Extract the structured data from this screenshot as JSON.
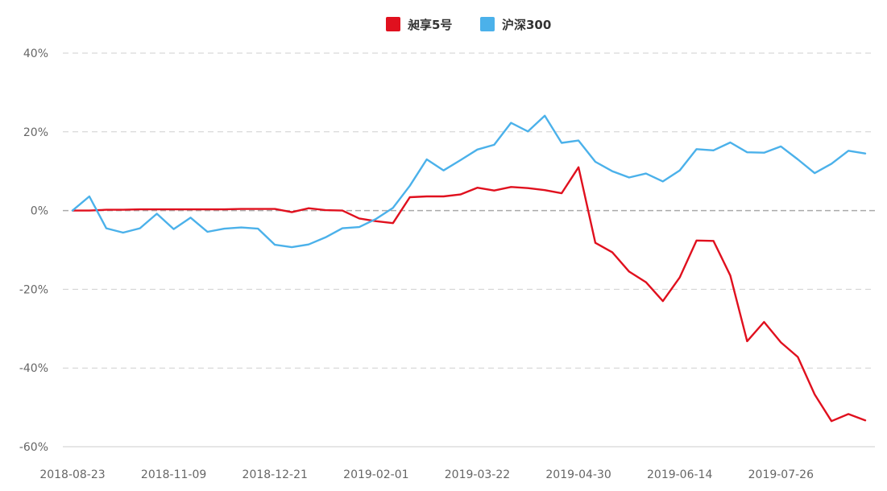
{
  "chart_data": {
    "type": "line",
    "title": "",
    "xlabel": "",
    "ylabel": "",
    "ylim": [
      -60,
      40
    ],
    "y_ticks": [
      "40%",
      "20%",
      "0%",
      "-20%",
      "-40%",
      "-60%"
    ],
    "y_tick_values": [
      40,
      20,
      0,
      -20,
      -40,
      -60
    ],
    "grid": true,
    "legend_position": "top-center",
    "x_tick_labels": [
      "2018-08-23",
      "2018-11-09",
      "2018-12-21",
      "2019-02-01",
      "2019-03-22",
      "2019-04-30",
      "2019-06-14",
      "2019-07-26"
    ],
    "x_tick_indices": [
      0,
      6,
      12,
      18,
      24,
      30,
      36,
      42
    ],
    "series": [
      {
        "name": "昶享5号",
        "color": "#e0101e",
        "values": [
          0,
          0,
          0.2,
          0.2,
          0.3,
          0.3,
          0.3,
          0.3,
          0.3,
          0.3,
          0.4,
          0.4,
          0.4,
          -0.4,
          0.6,
          0.1,
          0,
          -2,
          -2.7,
          -3.2,
          3.4,
          3.6,
          3.6,
          4.1,
          5.8,
          5.1,
          6,
          5.7,
          5.2,
          4.4,
          11,
          -8.2,
          -10.6,
          -15.5,
          -18.2,
          -23,
          -17,
          -7.6,
          -7.7,
          -16.5,
          -33.2,
          -28.3,
          -33.5,
          -37.2,
          -46.7,
          -53.5,
          -51.7,
          -53.3
        ]
      },
      {
        "name": "沪深300",
        "color": "#4bb1ea",
        "values": [
          0,
          3.6,
          -4.5,
          -5.6,
          -4.5,
          -0.8,
          -4.7,
          -1.8,
          -5.4,
          -4.6,
          -4.3,
          -4.6,
          -8.7,
          -9.3,
          -8.6,
          -6.8,
          -4.5,
          -4.2,
          -2.1,
          0.7,
          6.3,
          13,
          10.2,
          12.8,
          15.5,
          16.7,
          22.3,
          20.1,
          24.1,
          17.2,
          17.8,
          12.4,
          10,
          8.4,
          9.4,
          7.4,
          10.2,
          15.6,
          15.3,
          17.3,
          14.8,
          14.7,
          16.3,
          13,
          9.5,
          11.9,
          15.2,
          14.5
        ]
      }
    ]
  }
}
